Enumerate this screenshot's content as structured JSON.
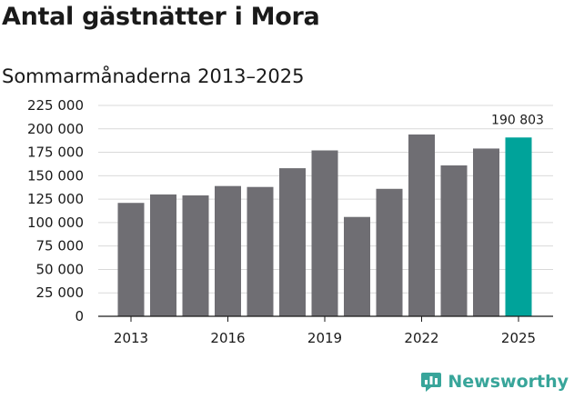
{
  "title": "Antal gästnätter i Mora",
  "subtitle": "Sommarmånaderna 2013–2025",
  "brand": {
    "name": "Newsworthy",
    "icon": "bar-chart-logo-icon",
    "color": "#38a59a"
  },
  "colors": {
    "bar": "#6f6e73",
    "highlight": "#00a39a",
    "grid": "#d9d9d9",
    "axis": "#1a1a1a"
  },
  "chart_data": {
    "type": "bar",
    "categories": [
      "2013",
      "2014",
      "2015",
      "2016",
      "2017",
      "2018",
      "2019",
      "2020",
      "2021",
      "2022",
      "2023",
      "2024",
      "2025"
    ],
    "values": [
      121000,
      130000,
      129000,
      139000,
      138000,
      158000,
      177000,
      106000,
      136000,
      194000,
      161000,
      179000,
      190803
    ],
    "highlight_index": 12,
    "data_labels": [
      {
        "index": 12,
        "text": "190 803"
      }
    ],
    "x_tick_labels": [
      "2013",
      "2016",
      "2019",
      "2022",
      "2025"
    ],
    "y_ticks": [
      0,
      25000,
      50000,
      75000,
      100000,
      125000,
      150000,
      175000,
      200000,
      225000
    ],
    "y_tick_labels": [
      "0",
      "25 000",
      "50 000",
      "75 000",
      "100 000",
      "125 000",
      "150 000",
      "175 000",
      "200 000",
      "225 000"
    ],
    "ylim": [
      0,
      225000
    ],
    "grid": true,
    "xlabel": "",
    "ylabel": ""
  }
}
